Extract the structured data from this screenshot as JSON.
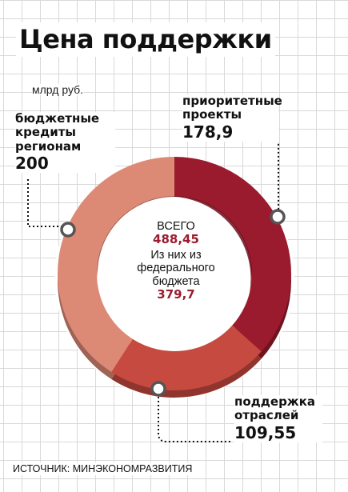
{
  "title": "Цена поддержки",
  "unit": "млрд руб.",
  "source": "ИСТОЧНИК: МИНЭКОНОМРАЗВИТИЯ",
  "center": {
    "total_label": "ВСЕГО",
    "total_value": "488,45",
    "federal_label": "Из них из федерального бюджета",
    "federal_value": "379,7"
  },
  "colors": {
    "priority": "#9b1b2e",
    "sectors": "#c64a3f",
    "regions": "#dc8a76"
  },
  "labels": {
    "regions": {
      "text": "бюджетные кредиты регионам",
      "value": "200"
    },
    "priority": {
      "text": "приоритетные проекты",
      "value": "178,9"
    },
    "sectors": {
      "text": "поддержка отраслей",
      "value": "109,55"
    }
  },
  "chart_data": {
    "type": "pie",
    "title": "Цена поддержки",
    "unit": "млрд руб.",
    "total": 488.45,
    "categories": [
      "приоритетные проекты",
      "поддержка отраслей",
      "бюджетные кредиты регионам"
    ],
    "values": [
      178.9,
      109.55,
      200
    ]
  }
}
